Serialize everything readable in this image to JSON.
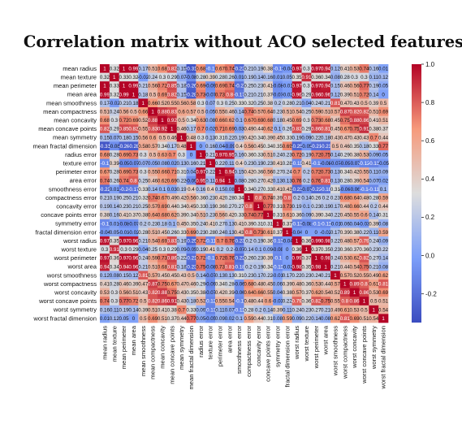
{
  "chart_data": {
    "type": "heatmap",
    "title": "Correlation matrix without ACO selected features",
    "labels": [
      "mean radius",
      "mean texture",
      "mean perimeter",
      "mean area",
      "mean smoothness",
      "mean compactness",
      "mean concavity",
      "mean concave points",
      "mean symmetry",
      "mean fractal dimension",
      "radius error",
      "texture error",
      "perimeter error",
      "area error",
      "smoothness error",
      "compactness error",
      "concavity error",
      "concave points error",
      "symmetry error",
      "fractal dimension error",
      "worst radius",
      "worst texture",
      "worst perimeter",
      "worst area",
      "worst smoothness",
      "worst compactness",
      "worst concavity",
      "worst concave points",
      "worst symmetry",
      "worst fractal dimension"
    ],
    "values": [
      [
        1.0,
        0.32,
        1.0,
        0.99,
        0.17,
        0.51,
        0.68,
        0.82,
        0.15,
        -0.31,
        0.68,
        -0.1,
        0.67,
        0.74,
        -0.22,
        0.21,
        0.19,
        0.38,
        -0.1,
        -0.04,
        0.97,
        0.3,
        0.97,
        0.94,
        0.12,
        0.41,
        0.53,
        0.74,
        0.16,
        0.01
      ],
      [
        0.32,
        1.0,
        0.33,
        0.32,
        -0.02,
        0.24,
        0.3,
        0.29,
        0.07,
        -0.08,
        0.28,
        0.39,
        0.28,
        0.26,
        0.01,
        0.19,
        0.14,
        0.16,
        0.01,
        0.05,
        0.35,
        0.91,
        0.36,
        0.34,
        0.08,
        0.28,
        0.3,
        0.3,
        0.11,
        0.12
      ],
      [
        1.0,
        0.33,
        1.0,
        0.99,
        0.21,
        0.56,
        0.72,
        0.85,
        0.18,
        -0.26,
        0.69,
        -0.09,
        0.69,
        0.74,
        -0.2,
        0.25,
        0.23,
        0.41,
        -0.08,
        -0.01,
        0.97,
        0.3,
        0.97,
        0.94,
        0.15,
        0.46,
        0.56,
        0.77,
        0.19,
        0.05
      ],
      [
        0.99,
        0.32,
        0.99,
        1.0,
        0.18,
        0.5,
        0.69,
        0.82,
        0.15,
        -0.28,
        0.73,
        -0.07,
        0.73,
        0.8,
        -0.17,
        0.21,
        0.21,
        0.37,
        -0.07,
        -0.02,
        0.96,
        0.29,
        0.96,
        0.96,
        0.12,
        0.39,
        0.51,
        0.72,
        0.14,
        0.0
      ],
      [
        0.17,
        -0.02,
        0.21,
        0.18,
        1.0,
        0.66,
        0.52,
        0.55,
        0.56,
        0.58,
        0.3,
        0.07,
        0.3,
        0.25,
        0.33,
        0.32,
        0.25,
        0.38,
        0.2,
        0.28,
        0.21,
        0.04,
        0.24,
        0.21,
        0.81,
        0.47,
        0.43,
        0.5,
        0.39,
        0.5
      ],
      [
        0.51,
        0.24,
        0.56,
        0.5,
        0.66,
        1.0,
        0.88,
        0.83,
        0.6,
        0.57,
        0.5,
        0.05,
        0.55,
        0.46,
        0.14,
        0.74,
        0.57,
        0.64,
        0.23,
        0.51,
        0.54,
        0.25,
        0.59,
        0.51,
        0.57,
        0.87,
        0.82,
        0.82,
        0.51,
        0.69
      ],
      [
        0.68,
        0.3,
        0.72,
        0.69,
        0.52,
        0.88,
        1.0,
        0.92,
        0.5,
        0.34,
        0.63,
        0.08,
        0.66,
        0.62,
        0.1,
        0.67,
        0.69,
        0.68,
        0.18,
        0.45,
        0.69,
        0.3,
        0.73,
        0.68,
        0.45,
        0.75,
        0.88,
        0.86,
        0.41,
        0.51
      ],
      [
        0.82,
        0.29,
        0.85,
        0.82,
        0.55,
        0.83,
        0.92,
        1.0,
        0.46,
        0.17,
        0.7,
        0.02,
        0.71,
        0.69,
        0.03,
        0.49,
        0.44,
        0.62,
        0.1,
        0.26,
        0.83,
        0.29,
        0.86,
        0.81,
        0.45,
        0.67,
        0.75,
        0.91,
        0.38,
        0.37
      ],
      [
        0.15,
        0.07,
        0.18,
        0.15,
        0.56,
        0.6,
        0.5,
        0.46,
        1.0,
        0.48,
        0.3,
        0.13,
        0.31,
        0.22,
        0.19,
        0.42,
        0.34,
        0.39,
        0.45,
        0.33,
        0.19,
        0.09,
        0.22,
        0.18,
        0.43,
        0.47,
        0.43,
        0.43,
        0.7,
        0.44
      ],
      [
        -0.31,
        -0.08,
        -0.26,
        -0.28,
        0.58,
        0.57,
        0.34,
        0.17,
        0.48,
        1.0,
        0.0,
        0.16,
        0.04,
        -0.09,
        0.4,
        0.56,
        0.45,
        0.34,
        0.35,
        0.69,
        -0.25,
        -0.05,
        -0.21,
        -0.23,
        0.5,
        0.46,
        0.35,
        0.18,
        0.33,
        0.77
      ],
      [
        0.68,
        0.28,
        0.69,
        0.73,
        0.3,
        0.5,
        0.63,
        0.7,
        0.3,
        0.0,
        1.0,
        0.21,
        0.97,
        0.95,
        0.16,
        0.36,
        0.33,
        0.51,
        0.24,
        0.23,
        0.72,
        0.19,
        0.72,
        0.75,
        0.14,
        0.29,
        0.38,
        0.53,
        0.09,
        0.05
      ],
      [
        -0.1,
        0.39,
        -0.09,
        -0.07,
        0.07,
        0.05,
        0.08,
        0.02,
        0.13,
        0.16,
        0.21,
        1.0,
        0.22,
        0.11,
        0.4,
        0.23,
        0.19,
        0.23,
        0.41,
        0.28,
        -0.11,
        0.41,
        -0.1,
        -0.08,
        -0.07,
        -0.09,
        -0.07,
        -0.12,
        -0.13,
        -0.05
      ],
      [
        0.67,
        0.28,
        0.69,
        0.73,
        0.3,
        0.55,
        0.66,
        0.71,
        0.31,
        0.04,
        0.97,
        0.22,
        1.0,
        0.94,
        0.15,
        0.42,
        0.36,
        0.56,
        0.27,
        0.24,
        0.7,
        0.2,
        0.72,
        0.73,
        0.13,
        0.34,
        0.42,
        0.55,
        0.11,
        0.09
      ],
      [
        0.74,
        0.26,
        0.74,
        0.8,
        0.25,
        0.46,
        0.62,
        0.69,
        0.22,
        -0.09,
        0.95,
        0.11,
        0.94,
        1.0,
        0.08,
        0.28,
        0.27,
        0.42,
        0.13,
        0.13,
        0.76,
        0.2,
        0.76,
        0.81,
        0.13,
        0.28,
        0.39,
        0.54,
        0.07,
        0.02
      ],
      [
        -0.22,
        0.01,
        -0.2,
        -0.17,
        0.33,
        0.14,
        0.1,
        0.03,
        0.19,
        0.4,
        0.16,
        0.4,
        0.15,
        0.08,
        1.0,
        0.34,
        0.27,
        0.33,
        0.41,
        0.43,
        -0.23,
        -0.07,
        -0.22,
        -0.18,
        0.31,
        -0.06,
        -0.06,
        -0.1,
        -0.11,
        0.1
      ],
      [
        0.21,
        0.19,
        0.25,
        0.21,
        0.32,
        0.74,
        0.67,
        0.49,
        0.42,
        0.56,
        0.36,
        0.23,
        0.42,
        0.28,
        0.34,
        1.0,
        0.8,
        0.74,
        0.39,
        0.8,
        0.2,
        0.14,
        0.26,
        0.2,
        0.23,
        0.68,
        0.64,
        0.48,
        0.28,
        0.59
      ],
      [
        0.19,
        0.14,
        0.23,
        0.21,
        0.25,
        0.57,
        0.69,
        0.44,
        0.34,
        0.45,
        0.33,
        0.19,
        0.36,
        0.27,
        0.27,
        0.8,
        1.0,
        0.77,
        0.31,
        0.73,
        0.19,
        0.1,
        0.23,
        0.19,
        0.17,
        0.48,
        0.66,
        0.44,
        0.2,
        0.44
      ],
      [
        0.38,
        0.16,
        0.41,
        0.37,
        0.38,
        0.64,
        0.68,
        0.62,
        0.39,
        0.34,
        0.51,
        0.23,
        0.56,
        0.42,
        0.33,
        0.74,
        0.77,
        1.0,
        0.31,
        0.61,
        0.36,
        0.09,
        0.39,
        0.34,
        0.22,
        0.45,
        0.55,
        0.6,
        0.14,
        0.31
      ],
      [
        -0.1,
        0.01,
        -0.08,
        -0.07,
        0.2,
        0.23,
        0.18,
        0.1,
        0.45,
        0.35,
        0.24,
        0.41,
        0.27,
        0.13,
        0.41,
        0.39,
        0.31,
        0.31,
        1.0,
        0.37,
        -0.13,
        -0.08,
        -0.1,
        -0.11,
        -0.01,
        0.06,
        0.04,
        -0.03,
        0.39,
        0.08
      ],
      [
        -0.04,
        0.05,
        -0.01,
        -0.02,
        0.28,
        0.51,
        0.45,
        0.26,
        0.33,
        0.69,
        0.23,
        0.28,
        0.24,
        0.13,
        0.43,
        0.8,
        0.73,
        0.61,
        0.37,
        1.0,
        -0.04,
        -0.0,
        -0.0,
        -0.02,
        0.17,
        0.39,
        0.38,
        0.22,
        0.11,
        0.59
      ],
      [
        0.97,
        0.35,
        0.97,
        0.96,
        0.21,
        0.54,
        0.69,
        0.83,
        0.19,
        -0.25,
        0.72,
        -0.11,
        0.7,
        0.76,
        -0.23,
        0.2,
        0.19,
        0.36,
        -0.13,
        -0.04,
        1.0,
        0.36,
        0.99,
        0.98,
        0.22,
        0.48,
        0.57,
        0.79,
        0.24,
        0.09
      ],
      [
        0.3,
        0.91,
        0.3,
        0.29,
        0.04,
        0.25,
        0.3,
        0.29,
        0.09,
        -0.05,
        0.19,
        0.41,
        0.2,
        0.2,
        -0.07,
        0.14,
        0.1,
        0.09,
        -0.08,
        -0.0,
        0.36,
        1.0,
        0.37,
        0.35,
        0.23,
        0.36,
        0.37,
        0.36,
        0.23,
        0.22
      ],
      [
        0.97,
        0.36,
        0.97,
        0.96,
        0.24,
        0.59,
        0.73,
        0.86,
        0.22,
        -0.21,
        0.72,
        -0.1,
        0.72,
        0.76,
        -0.22,
        0.26,
        0.23,
        0.39,
        -0.1,
        -0.0,
        0.99,
        0.37,
        1.0,
        0.98,
        0.24,
        0.53,
        0.62,
        0.82,
        0.27,
        0.14
      ],
      [
        0.94,
        0.34,
        0.94,
        0.96,
        0.21,
        0.51,
        0.68,
        0.81,
        0.18,
        -0.23,
        0.75,
        -0.08,
        0.73,
        0.81,
        -0.18,
        0.2,
        0.19,
        0.34,
        -0.11,
        -0.02,
        0.98,
        0.35,
        0.98,
        1.0,
        0.21,
        0.44,
        0.54,
        0.75,
        0.21,
        0.08
      ],
      [
        0.12,
        0.08,
        0.15,
        0.12,
        0.81,
        0.57,
        0.45,
        0.45,
        0.43,
        0.5,
        0.14,
        -0.07,
        0.13,
        0.13,
        0.31,
        0.23,
        0.17,
        0.22,
        -0.01,
        0.17,
        0.22,
        0.23,
        0.24,
        0.21,
        1.0,
        0.57,
        0.52,
        0.55,
        0.49,
        0.62
      ],
      [
        0.41,
        0.28,
        0.46,
        0.39,
        0.47,
        0.87,
        0.75,
        0.67,
        0.47,
        0.46,
        0.29,
        -0.09,
        0.34,
        0.28,
        -0.06,
        0.68,
        0.48,
        0.45,
        0.06,
        0.39,
        0.48,
        0.36,
        0.53,
        0.44,
        0.57,
        1.0,
        0.89,
        0.8,
        0.61,
        0.81
      ],
      [
        0.53,
        0.3,
        0.56,
        0.51,
        0.43,
        0.82,
        0.88,
        0.75,
        0.43,
        0.35,
        0.38,
        -0.07,
        0.42,
        0.39,
        -0.06,
        0.64,
        0.66,
        0.55,
        0.04,
        0.38,
        0.57,
        0.37,
        0.62,
        0.54,
        0.52,
        0.89,
        1.0,
        0.86,
        0.53,
        0.69
      ],
      [
        0.74,
        0.3,
        0.77,
        0.72,
        0.5,
        0.82,
        0.86,
        0.91,
        0.43,
        0.18,
        0.53,
        -0.12,
        0.55,
        0.54,
        -0.1,
        0.48,
        0.44,
        0.6,
        -0.03,
        0.22,
        0.79,
        0.36,
        0.82,
        0.75,
        0.55,
        0.8,
        0.86,
        1.0,
        0.5,
        0.51
      ],
      [
        0.16,
        0.11,
        0.19,
        0.14,
        0.39,
        0.51,
        0.41,
        0.38,
        0.7,
        0.33,
        0.09,
        -0.13,
        0.11,
        0.07,
        -0.11,
        0.28,
        0.2,
        0.14,
        0.39,
        0.11,
        0.24,
        0.23,
        0.27,
        0.21,
        0.49,
        0.61,
        0.53,
        0.5,
        1.0,
        0.54
      ],
      [
        0.01,
        0.12,
        0.05,
        0.0,
        0.5,
        0.69,
        0.51,
        0.37,
        0.44,
        0.77,
        0.05,
        -0.05,
        0.09,
        0.02,
        0.1,
        0.59,
        0.44,
        0.31,
        0.08,
        0.59,
        0.09,
        0.22,
        0.14,
        0.08,
        0.62,
        0.81,
        0.69,
        0.51,
        0.54,
        1.0
      ]
    ],
    "colorbar": {
      "min": -0.35,
      "max": 1.0,
      "ticks": [
        "1.0",
        "0.8",
        "0.6",
        "0.4",
        "0.2",
        "0.0",
        "-0.2"
      ],
      "tick_values": [
        1.0,
        0.8,
        0.6,
        0.4,
        0.2,
        0.0,
        -0.2
      ],
      "colormap": "coolwarm"
    },
    "annotated": true,
    "grid": false
  }
}
